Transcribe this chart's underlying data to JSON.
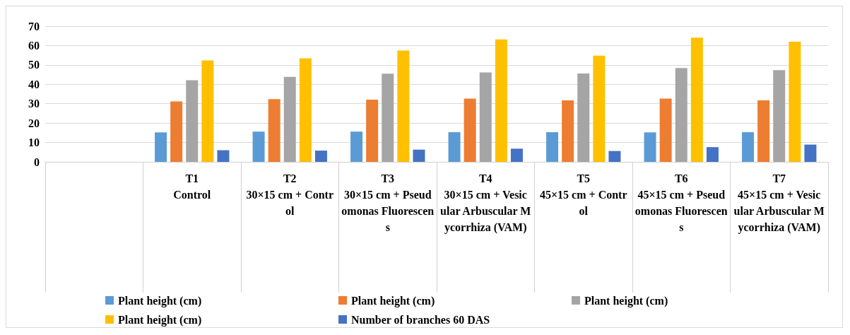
{
  "chart_data": {
    "type": "bar",
    "categories": [
      null,
      "T1\nControl",
      "T2\n30×15 cm + Control",
      "T3\n30×15 cm + Pseudomonas Fluorescens",
      "T4\n30×15 cm + Vesicular Arbuscular Mycorrhiza (VAM)",
      "T5\n45×15 cm + Control",
      "T6\n45×15 cm + Pseudomonas Fluorescens",
      "T7\n45×15 cm + Vesicular Arbuscular Mycorrhiza (VAM)"
    ],
    "series": [
      {
        "name": "Plant height (cm)",
        "color": "#5b9bd5",
        "values": [
          null,
          15.2,
          15.6,
          15.6,
          15.3,
          15.3,
          15.2,
          15.3
        ]
      },
      {
        "name": "Plant height (cm)",
        "color": "#ed7d31",
        "values": [
          null,
          31.2,
          32.4,
          32.1,
          32.6,
          31.7,
          32.6,
          31.7
        ]
      },
      {
        "name": "Plant height (cm)",
        "color": "#a5a5a5",
        "values": [
          null,
          42.1,
          43.8,
          45.5,
          46.1,
          45.6,
          48.4,
          47.3
        ]
      },
      {
        "name": "Plant height (cm)",
        "color": "#ffc000",
        "values": [
          null,
          52.3,
          53.4,
          57.4,
          63.2,
          54.8,
          64.1,
          62.0
        ]
      },
      {
        "name": "Number of branches 60 DAS",
        "color": "#4472c4",
        "values": [
          null,
          6.0,
          5.8,
          6.3,
          6.8,
          5.6,
          7.6,
          8.9
        ]
      }
    ],
    "ylim": [
      0,
      70
    ],
    "yticks": [
      0,
      10,
      20,
      30,
      40,
      50,
      60,
      70
    ],
    "grid": "y",
    "legend": "bottom"
  }
}
